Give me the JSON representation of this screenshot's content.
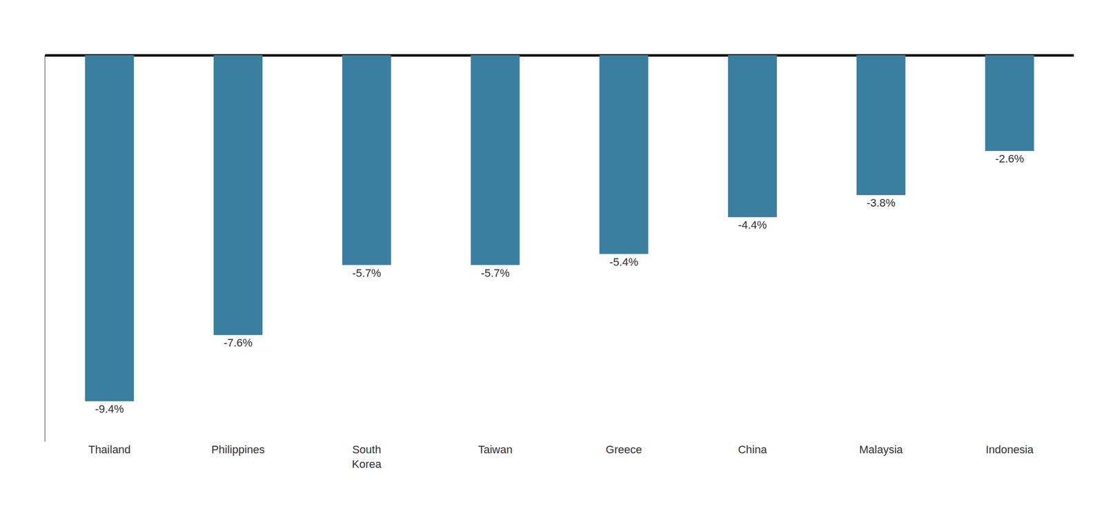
{
  "chart_data": {
    "type": "bar",
    "categories": [
      "Thailand",
      "Philippines",
      "South\nKorea",
      "Taiwan",
      "Greece",
      "China",
      "Malaysia",
      "Indonesia"
    ],
    "values": [
      -9.4,
      -7.6,
      -5.7,
      -5.7,
      -5.4,
      -4.4,
      -3.8,
      -2.6
    ],
    "value_labels": [
      "-9.4%",
      "-7.6%",
      "-5.7%",
      "-5.7%",
      "-5.4%",
      "-4.4%",
      "-3.8%",
      "-2.6%"
    ],
    "data_labels": true,
    "color": "#3a7fa0",
    "ylim": [
      -10.5,
      0
    ],
    "tick_labels": "x",
    "grid": false
  }
}
